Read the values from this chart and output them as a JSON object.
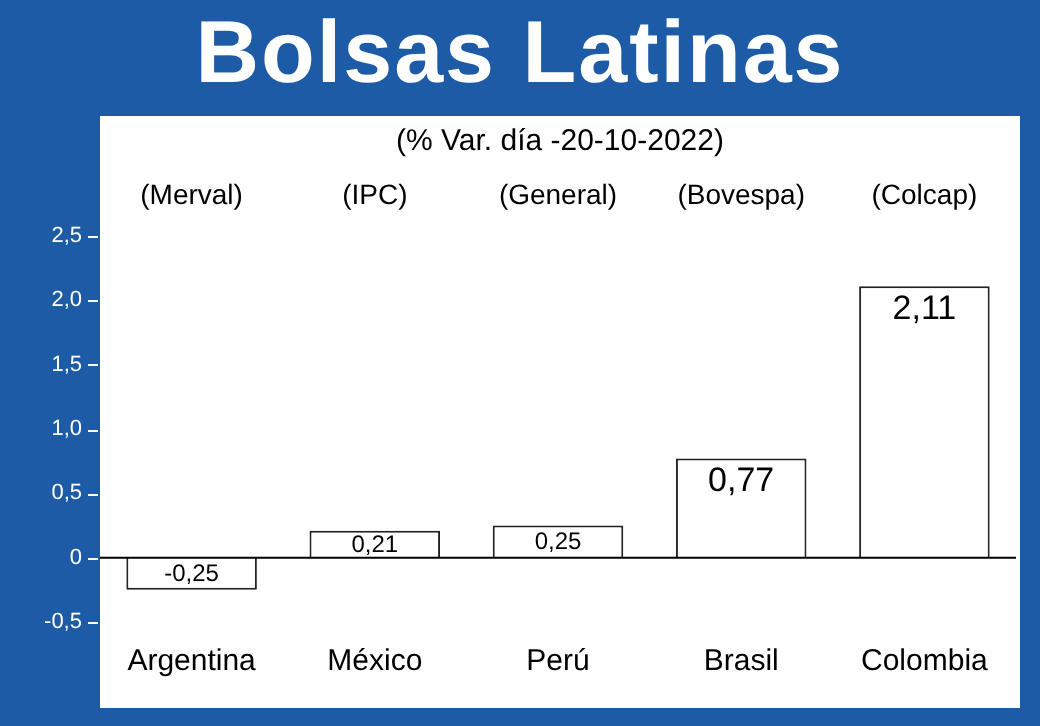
{
  "chart_data": {
    "type": "bar",
    "title": "Bolsas Latinas",
    "subtitle": "(% Var. día -20-10-2022)",
    "categories": [
      "Argentina",
      "México",
      "Perú",
      "Brasil",
      "Colombia"
    ],
    "values": [
      -0.25,
      0.21,
      0.25,
      0.77,
      2.11
    ],
    "color": "#ffffff",
    "value_labels": [
      "-0,25",
      "0,21",
      "0,25",
      "0,77",
      "2,11"
    ],
    "annotations": [
      "(Merval)",
      "(IPC)",
      "(General)",
      "(Bovespa)",
      "(Colcap)"
    ],
    "ylim": [
      -0.5,
      2.5
    ],
    "yticks": [
      {
        "value": -0.5,
        "label": "-0,5"
      },
      0,
      {
        "value": 0.5,
        "label": "0,5"
      },
      {
        "value": 1,
        "label": "1,0"
      },
      {
        "value": 1.5,
        "label": "1,5"
      },
      {
        "value": 2,
        "label": "2,0"
      },
      {
        "value": 2.5,
        "label": "2,5"
      }
    ],
    "legend": false
  }
}
